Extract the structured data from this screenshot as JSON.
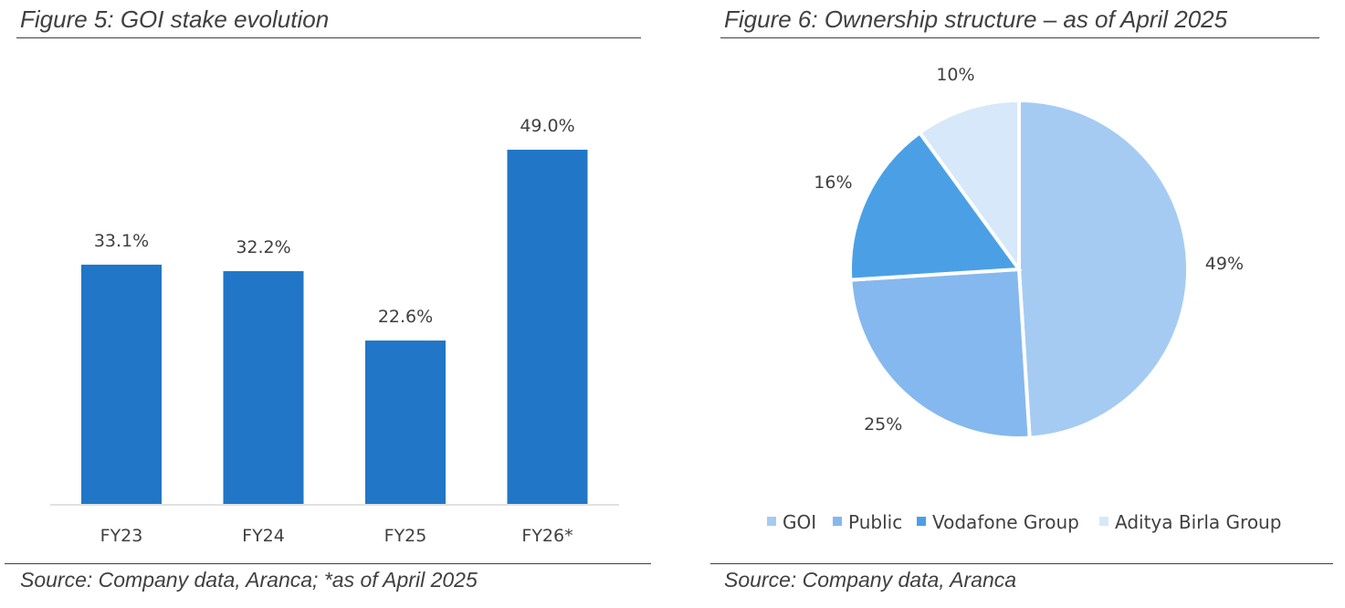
{
  "figures": [
    {
      "title": "Figure 5: GOI stake evolution",
      "source": "Source: Company data, Aranca; *as of April 2025",
      "color": "#2176C7"
    },
    {
      "title": "Figure 6: Ownership structure – as of April 2025",
      "source": "Source: Company data, Aranca"
    }
  ],
  "chart_data": [
    {
      "type": "bar",
      "title": "Figure 5: GOI stake evolution",
      "categories": [
        "FY23",
        "FY24",
        "FY25",
        "FY26*"
      ],
      "values": [
        33.1,
        32.2,
        22.6,
        49.0
      ],
      "data_labels": [
        "33.1%",
        "32.2%",
        "22.6%",
        "49.0%"
      ],
      "xlabel": "",
      "ylabel": "",
      "ylim": [
        0,
        50
      ],
      "grid": false,
      "color": "#2176C7"
    },
    {
      "type": "pie",
      "title": "Figure 6: Ownership structure – as of April 2025",
      "categories": [
        "GOI",
        "Public",
        "Vodafone Group",
        "Aditya Birla Group"
      ],
      "values": [
        49,
        25,
        16,
        10
      ],
      "data_labels": [
        "49%",
        "25%",
        "16%",
        "10%"
      ],
      "colors": [
        "#A5CBF3",
        "#85B8EE",
        "#4BA0E5",
        "#D6E8F9"
      ],
      "legend": "bottom"
    }
  ]
}
